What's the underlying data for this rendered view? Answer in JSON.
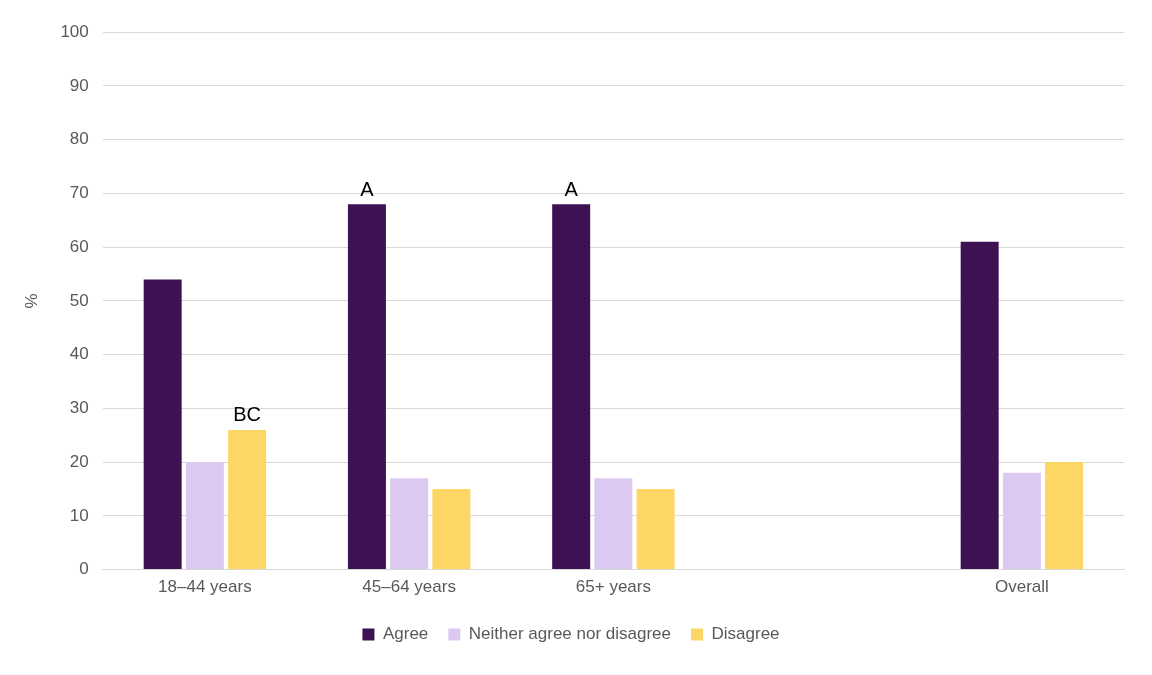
{
  "chart_data": {
    "type": "bar",
    "ylabel": "%",
    "categories": [
      "18–44 years",
      "45–64 years",
      "65+ years",
      null,
      "Overall"
    ],
    "series": [
      {
        "name": "Agree",
        "color": "#3d1152",
        "values": [
          54,
          68,
          68,
          null,
          61
        ],
        "value_labels": [
          null,
          "A",
          "A",
          null,
          null
        ]
      },
      {
        "name": "Neither agree nor disagree",
        "color": "#dcc9f2",
        "values": [
          20,
          17,
          17,
          null,
          18
        ]
      },
      {
        "name": "Disagree",
        "color": "#fcd765",
        "values": [
          26,
          15,
          15,
          null,
          20
        ],
        "value_labels": [
          "BC",
          null,
          null,
          null,
          null
        ]
      }
    ],
    "ylim": [
      0,
      100
    ],
    "yticks": [
      0,
      10,
      20,
      30,
      40,
      50,
      60,
      70,
      80,
      90,
      100
    ],
    "grid": "y",
    "legend": "bottom"
  }
}
